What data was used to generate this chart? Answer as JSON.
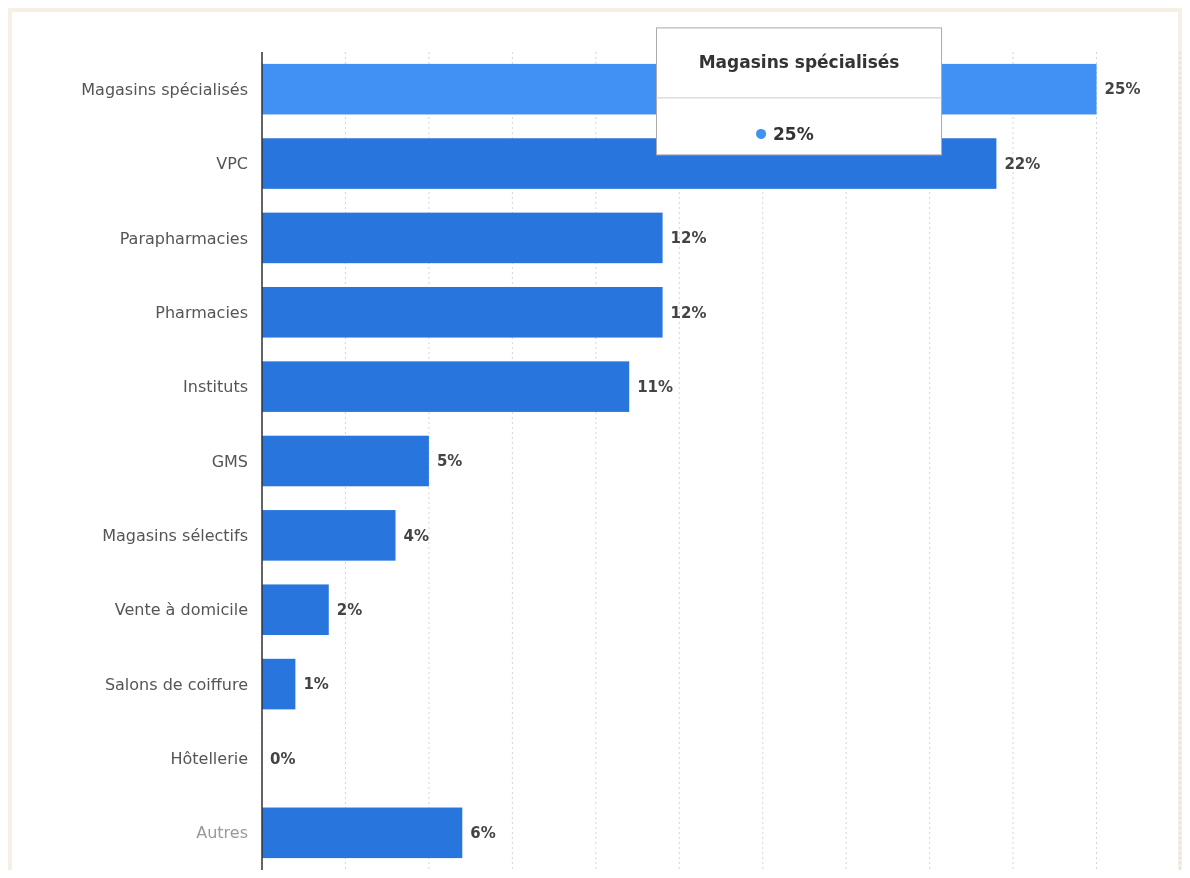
{
  "chart_data": {
    "type": "bar",
    "orientation": "horizontal",
    "categories": [
      "Magasins spécialisés",
      "VPC",
      "Parapharmacies",
      "Pharmacies",
      "Instituts",
      "GMS",
      "Magasins sélectifs",
      "Vente à domicile",
      "Salons de coiffure",
      "Hôtellerie",
      "Autres"
    ],
    "values": [
      25,
      22,
      12,
      12,
      11,
      5,
      4,
      2,
      1,
      0,
      6
    ],
    "value_labels": [
      "25%",
      "22%",
      "12%",
      "12%",
      "11%",
      "5%",
      "4%",
      "2%",
      "1%",
      "0%",
      "6%"
    ],
    "colors": [
      "#4190f4",
      "#2876dd",
      "#2876dd",
      "#2876dd",
      "#2876dd",
      "#2876dd",
      "#2876dd",
      "#2876dd",
      "#2876dd",
      "#2876dd",
      "#2876dd"
    ],
    "xlim": [
      0,
      27.5
    ],
    "xticks": [
      {
        "value": 0,
        "label": null
      },
      {
        "value": 2.5,
        "label": null
      },
      {
        "value": 5,
        "label": null
      },
      {
        "value": 7.5,
        "label": null
      },
      {
        "value": 10,
        "label": null
      },
      {
        "value": 12.5,
        "label": null
      },
      {
        "value": 15,
        "label": null
      },
      {
        "value": 17.5,
        "label": null
      },
      {
        "value": 20,
        "label": null
      },
      {
        "value": 22.5,
        "label": null
      },
      {
        "value": 25,
        "label": null
      },
      {
        "value": 27.5,
        "label": null
      }
    ],
    "tick_labels": "y",
    "grid": "x",
    "annotations": [
      "Magasins spécialisés",
      "25%"
    ]
  }
}
